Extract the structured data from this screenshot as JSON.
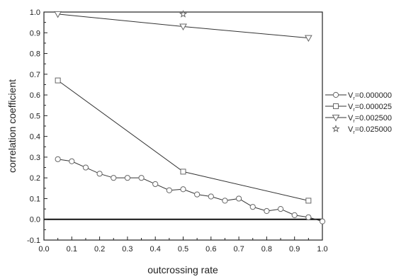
{
  "chart_data": {
    "type": "line",
    "title": "",
    "xlabel": "outcrossing rate",
    "ylabel": "correlation coefficient",
    "xlim": [
      0.0,
      1.0
    ],
    "ylim": [
      -0.1,
      1.0
    ],
    "xticks": [
      "0.0",
      "0.1",
      "0.2",
      "0.3",
      "0.4",
      "0.5",
      "0.6",
      "0.7",
      "0.8",
      "0.9",
      "1.0"
    ],
    "yticks": [
      "-0.1",
      "0.0",
      "0.1",
      "0.2",
      "0.3",
      "0.4",
      "0.5",
      "0.6",
      "0.7",
      "0.8",
      "0.9",
      "1.0"
    ],
    "xtick_values": [
      0.0,
      0.1,
      0.2,
      0.3,
      0.4,
      0.5,
      0.6,
      0.7,
      0.8,
      0.9,
      1.0
    ],
    "ytick_values": [
      -0.1,
      0.0,
      0.1,
      0.2,
      0.3,
      0.4,
      0.5,
      0.6,
      0.7,
      0.8,
      0.9,
      1.0
    ],
    "zero_line": 0.0,
    "grid": false,
    "legend_position": "right",
    "series": [
      {
        "name": "V_r=0.000000",
        "marker": "circle",
        "connected": true,
        "x": [
          0.05,
          0.1,
          0.15,
          0.2,
          0.25,
          0.3,
          0.35,
          0.4,
          0.45,
          0.5,
          0.55,
          0.6,
          0.65,
          0.7,
          0.75,
          0.8,
          0.85,
          0.9,
          0.95,
          1.0
        ],
        "y": [
          0.29,
          0.28,
          0.25,
          0.22,
          0.2,
          0.2,
          0.2,
          0.17,
          0.14,
          0.145,
          0.12,
          0.11,
          0.09,
          0.1,
          0.06,
          0.04,
          0.05,
          0.02,
          0.01,
          -0.01
        ]
      },
      {
        "name": "V_r=0.000025",
        "marker": "square",
        "connected": true,
        "x": [
          0.05,
          0.5,
          0.95
        ],
        "y": [
          0.67,
          0.23,
          0.09
        ]
      },
      {
        "name": "V_r=0.002500",
        "marker": "triangle-down",
        "connected": true,
        "x": [
          0.05,
          0.5,
          0.95
        ],
        "y": [
          0.99,
          0.93,
          0.875
        ]
      },
      {
        "name": "V_r=0.025000",
        "marker": "star",
        "connected": false,
        "x": [
          0.5
        ],
        "y": [
          0.99
        ]
      }
    ],
    "legend": [
      {
        "prefix": "V",
        "sub": "r",
        "value": "=0.000000"
      },
      {
        "prefix": "V",
        "sub": "r",
        "value": "=0.000025"
      },
      {
        "prefix": "V",
        "sub": "r",
        "value": "=0.002500"
      },
      {
        "prefix": "V",
        "sub": "r",
        "value": "=0.025000"
      }
    ]
  }
}
